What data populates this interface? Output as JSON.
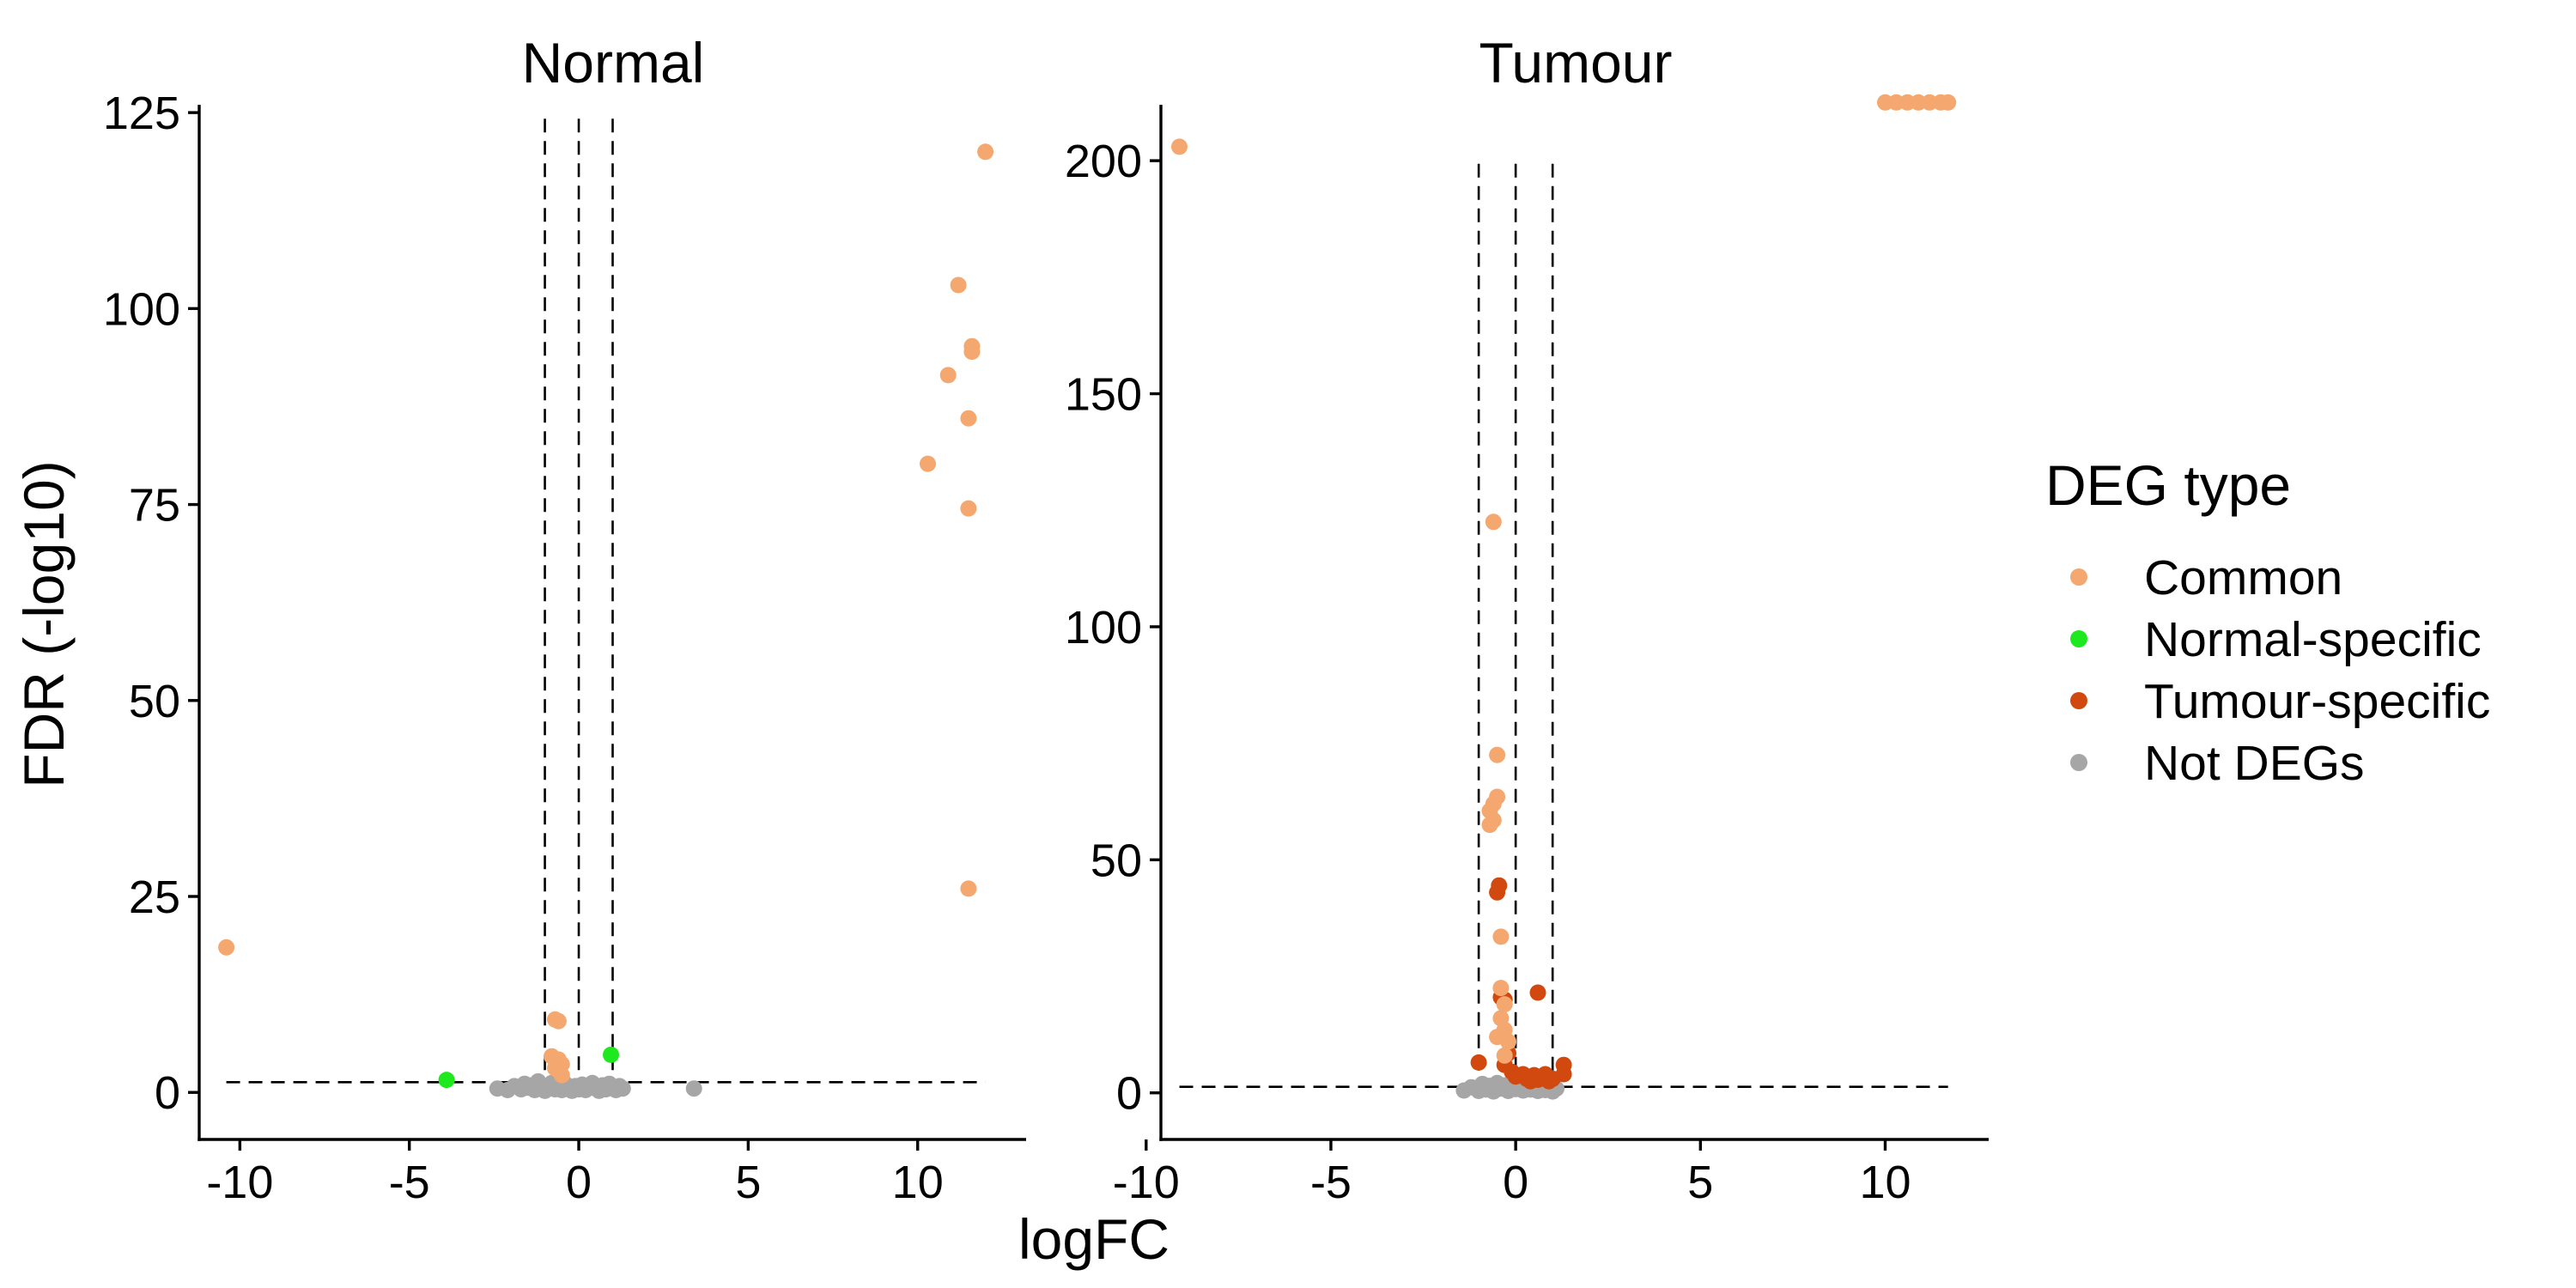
{
  "chart_data": {
    "type": "scatter",
    "xlabel": "logFC",
    "ylabel": "FDR (-log10)",
    "legend": {
      "title": "DEG type",
      "placement": "right",
      "entries": [
        {
          "label": "Common",
          "color": "#F4A76E"
        },
        {
          "label": "Normal-specific",
          "color": "#1EE81E"
        },
        {
          "label": "Tumour-specific",
          "color": "#D1490E"
        },
        {
          "label": "Not DEGs",
          "color": "#A6A6A6"
        }
      ]
    },
    "reference_lines": {
      "vertical": [
        -1,
        0,
        1
      ],
      "horizontal": 1.3
    },
    "panels": [
      {
        "title": "Normal",
        "xlim": [
          -11.2,
          13.2
        ],
        "ylim": [
          -6,
          126
        ],
        "xticks": [
          -10,
          -5,
          0,
          5,
          10
        ],
        "xtick_labels": [
          "-10",
          "-5",
          "0",
          "5",
          "10"
        ],
        "yticks": [
          0,
          25,
          50,
          75,
          100,
          125
        ],
        "ytick_labels": [
          "0",
          "25",
          "50",
          "75",
          "100",
          "125"
        ],
        "series": [
          {
            "name": "Not DEGs",
            "color": "#A6A6A6",
            "points": [
              [
                -2.4,
                0.5
              ],
              [
                -2.1,
                0.3
              ],
              [
                -1.9,
                0.8
              ],
              [
                -1.7,
                0.4
              ],
              [
                -1.6,
                1.1
              ],
              [
                -1.5,
                0.6
              ],
              [
                -1.4,
                0.9
              ],
              [
                -1.3,
                0.3
              ],
              [
                -1.2,
                1.4
              ],
              [
                -1.1,
                0.6
              ],
              [
                -1.0,
                0.2
              ],
              [
                -0.9,
                0.8
              ],
              [
                -0.8,
                1.2
              ],
              [
                -0.7,
                0.4
              ],
              [
                -0.6,
                0.9
              ],
              [
                -0.5,
                0.3
              ],
              [
                -0.4,
                1.1
              ],
              [
                -0.3,
                0.6
              ],
              [
                -0.2,
                0.2
              ],
              [
                -0.1,
                0.8
              ],
              [
                0.0,
                0.4
              ],
              [
                0.1,
                1.0
              ],
              [
                0.2,
                0.3
              ],
              [
                0.3,
                0.7
              ],
              [
                0.4,
                1.2
              ],
              [
                0.5,
                0.5
              ],
              [
                0.6,
                0.2
              ],
              [
                0.7,
                0.9
              ],
              [
                0.8,
                0.4
              ],
              [
                0.9,
                1.1
              ],
              [
                1.0,
                0.6
              ],
              [
                1.1,
                0.3
              ],
              [
                1.2,
                0.8
              ],
              [
                1.3,
                0.5
              ],
              [
                3.4,
                0.5
              ]
            ]
          },
          {
            "name": "Common",
            "color": "#F4A76E",
            "points": [
              [
                -10.4,
                18.5
              ],
              [
                -0.7,
                9.3
              ],
              [
                -0.6,
                9.1
              ],
              [
                -0.8,
                4.6
              ],
              [
                -0.6,
                4.2
              ],
              [
                -0.5,
                3.6
              ],
              [
                -0.6,
                2.8
              ],
              [
                -0.5,
                2.2
              ],
              [
                -0.7,
                3.1
              ],
              [
                10.3,
                80.2
              ],
              [
                10.9,
                91.5
              ],
              [
                11.2,
                103.0
              ],
              [
                11.5,
                86.0
              ],
              [
                11.6,
                94.5
              ],
              [
                11.6,
                95.2
              ],
              [
                11.5,
                74.5
              ],
              [
                12.0,
                120.0
              ],
              [
                11.5,
                26.0
              ]
            ]
          },
          {
            "name": "Normal-specific",
            "color": "#1EE81E",
            "points": [
              [
                -3.9,
                1.6
              ],
              [
                0.95,
                4.8
              ]
            ]
          }
        ]
      },
      {
        "title": "Tumour",
        "xlim": [
          -9.6,
          12.8
        ],
        "ylim": [
          -10,
          212
        ],
        "xticks": [
          -10,
          -5,
          0,
          5,
          10
        ],
        "xtick_labels": [
          "-10",
          "-5",
          "0",
          "5",
          "10"
        ],
        "yticks": [
          0,
          50,
          100,
          150,
          200
        ],
        "ytick_labels": [
          "0",
          "50",
          "100",
          "150",
          "200"
        ],
        "series": [
          {
            "name": "Not DEGs",
            "color": "#A6A6A6",
            "points": [
              [
                -1.4,
                0.5
              ],
              [
                -1.2,
                1.2
              ],
              [
                -1.0,
                0.4
              ],
              [
                -0.9,
                1.9
              ],
              [
                -0.8,
                0.7
              ],
              [
                -0.7,
                1.5
              ],
              [
                -0.6,
                0.3
              ],
              [
                -0.5,
                2.1
              ],
              [
                -0.4,
                0.9
              ],
              [
                -0.3,
                1.6
              ],
              [
                -0.2,
                0.4
              ],
              [
                -0.1,
                2.4
              ],
              [
                0.0,
                0.8
              ],
              [
                0.1,
                1.8
              ],
              [
                0.2,
                0.5
              ],
              [
                0.3,
                1.4
              ],
              [
                0.4,
                0.7
              ],
              [
                0.5,
                1.9
              ],
              [
                0.6,
                0.4
              ],
              [
                0.7,
                1.2
              ],
              [
                0.8,
                0.6
              ],
              [
                0.9,
                1.5
              ],
              [
                1.0,
                0.3
              ],
              [
                1.1,
                0.9
              ]
            ]
          },
          {
            "name": "Tumour-specific",
            "color": "#D1490E",
            "points": [
              [
                -1.0,
                6.5
              ],
              [
                -0.5,
                43.0
              ],
              [
                -0.45,
                44.5
              ],
              [
                -0.4,
                20.5
              ],
              [
                -0.3,
                20.0
              ],
              [
                -0.2,
                8.5
              ],
              [
                -0.3,
                6.0
              ],
              [
                -0.1,
                4.5
              ],
              [
                0.0,
                3.5
              ],
              [
                0.2,
                4.0
              ],
              [
                0.3,
                3.0
              ],
              [
                0.4,
                2.5
              ],
              [
                0.5,
                3.8
              ],
              [
                0.6,
                2.8
              ],
              [
                0.7,
                3.2
              ],
              [
                0.8,
                4.0
              ],
              [
                0.9,
                2.5
              ],
              [
                1.0,
                3.0
              ],
              [
                0.6,
                21.5
              ],
              [
                1.3,
                6.0
              ],
              [
                1.3,
                4.0
              ]
            ]
          },
          {
            "name": "Common",
            "color": "#F4A76E",
            "points": [
              [
                -9.1,
                203.0
              ],
              [
                -0.6,
                122.5
              ],
              [
                -0.5,
                72.5
              ],
              [
                -0.5,
                63.5
              ],
              [
                -0.6,
                62.0
              ],
              [
                -0.7,
                60.5
              ],
              [
                -0.6,
                58.5
              ],
              [
                -0.7,
                57.5
              ],
              [
                -0.4,
                33.5
              ],
              [
                -0.4,
                22.5
              ],
              [
                -0.3,
                19.0
              ],
              [
                -0.4,
                16.0
              ],
              [
                -0.3,
                13.5
              ],
              [
                -0.5,
                12.0
              ],
              [
                -0.2,
                11.0
              ],
              [
                -0.3,
                8.0
              ],
              [
                10.0,
                212.5
              ],
              [
                10.3,
                212.5
              ],
              [
                10.6,
                212.5
              ],
              [
                10.9,
                212.5
              ],
              [
                11.2,
                212.5
              ],
              [
                11.5,
                212.5
              ],
              [
                11.7,
                212.5
              ]
            ]
          }
        ]
      }
    ]
  }
}
